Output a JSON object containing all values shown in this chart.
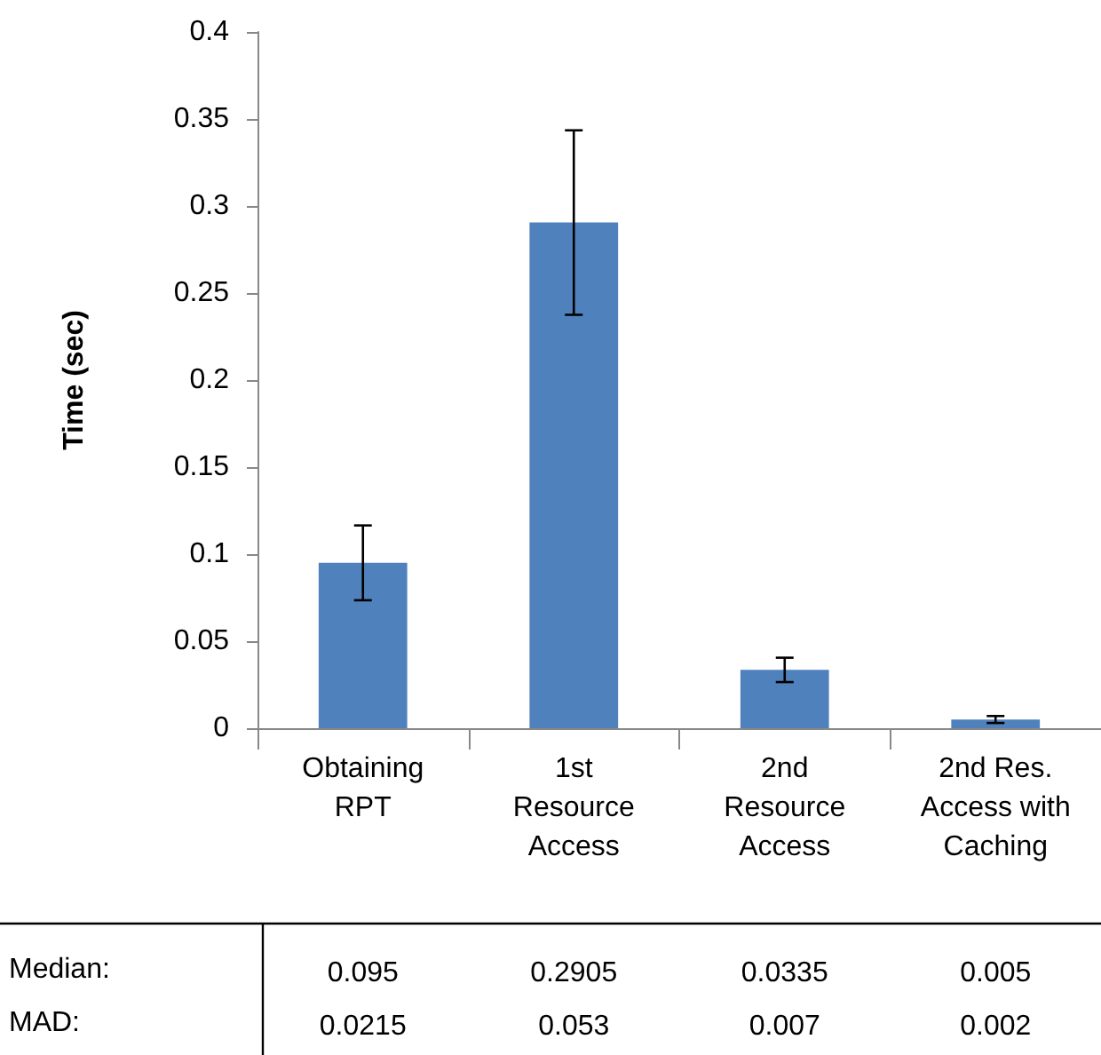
{
  "chart_data": {
    "type": "bar",
    "ylabel": "Time (sec)",
    "categories": [
      "Obtaining\nRPT",
      "1st\nResource\nAccess",
      "2nd\nResource\nAccess",
      "2nd Res.\nAccess with\nCaching"
    ],
    "values": [
      0.095,
      0.2905,
      0.0335,
      0.005
    ],
    "errors": [
      0.0215,
      0.053,
      0.007,
      0.002
    ],
    "color": "#4f81bd",
    "ylim": [
      0,
      0.4
    ],
    "yticks": [
      0,
      0.05,
      0.1,
      0.15,
      0.2,
      0.25,
      0.3,
      0.35,
      0.4
    ],
    "grid": false,
    "data_labels": true,
    "annotations": [
      "Median:",
      "MAD:",
      "0.0215",
      "0.053",
      "0.007",
      "0.002"
    ]
  }
}
